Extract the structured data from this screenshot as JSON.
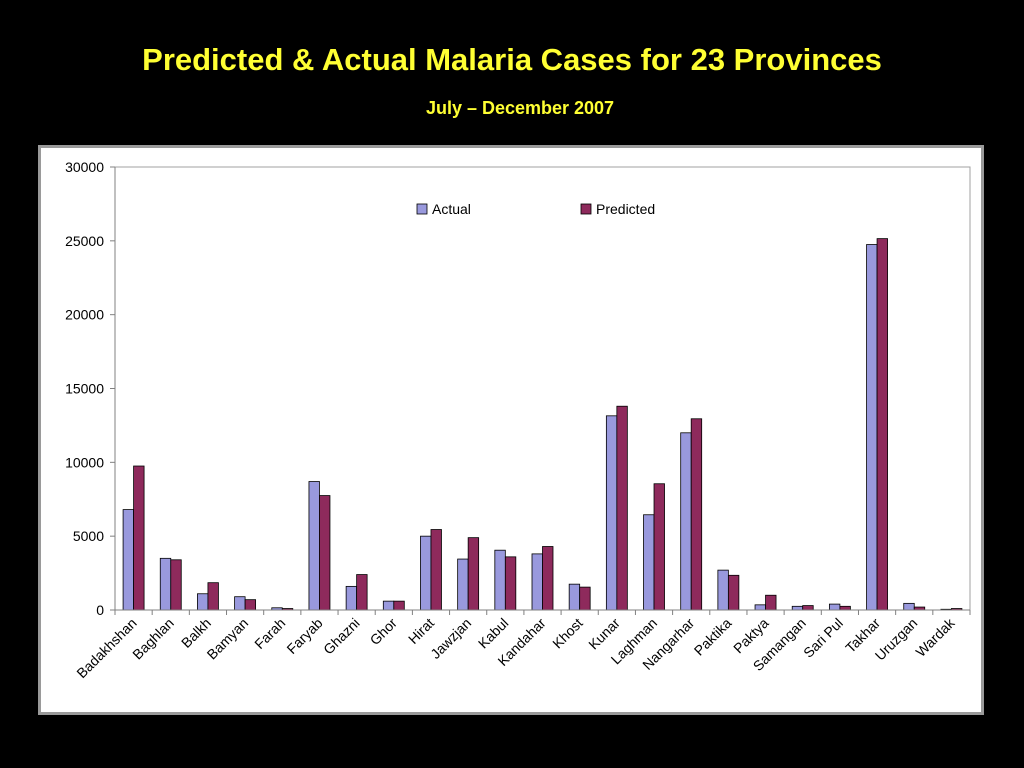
{
  "slide": {
    "title": "Predicted & Actual Malaria Cases for 23 Provinces",
    "subtitle": "July – December 2007"
  },
  "colors": {
    "background": "#000000",
    "title": "#ffff33",
    "actual": "#9999dd",
    "predicted": "#8e2a5c"
  },
  "chart_data": {
    "type": "bar",
    "title": "",
    "xlabel": "",
    "ylabel": "",
    "ylim": [
      0,
      30000
    ],
    "yticks": [
      "0",
      "5000",
      "10000",
      "15000",
      "20000",
      "25000",
      "30000"
    ],
    "grid": false,
    "legend_position": "top-center",
    "categories": [
      "Badakhshan",
      "Baghlan",
      "Balkh",
      "Bamyan",
      "Farah",
      "Faryab",
      "Ghazni",
      "Ghor",
      "Hirat",
      "Jawzjan",
      "Kabul",
      "Kandahar",
      "Khost",
      "Kunar",
      "Laghman",
      "Nangarhar",
      "Paktika",
      "Paktya",
      "Samangan",
      "Sari Pul",
      "Takhar",
      "Uruzgan",
      "Wardak"
    ],
    "series": [
      {
        "name": "Actual",
        "color": "#9999dd",
        "values": [
          6800,
          3500,
          1100,
          900,
          150,
          8700,
          1600,
          600,
          5000,
          3450,
          4050,
          3800,
          1750,
          13150,
          6450,
          12000,
          2700,
          350,
          250,
          400,
          24750,
          450,
          50
        ]
      },
      {
        "name": "Predicted",
        "color": "#8e2a5c",
        "values": [
          9750,
          3400,
          1850,
          700,
          100,
          7750,
          2400,
          600,
          5450,
          4900,
          3600,
          4300,
          1550,
          13800,
          8550,
          12950,
          2350,
          1000,
          300,
          250,
          25150,
          200,
          100
        ]
      }
    ]
  }
}
